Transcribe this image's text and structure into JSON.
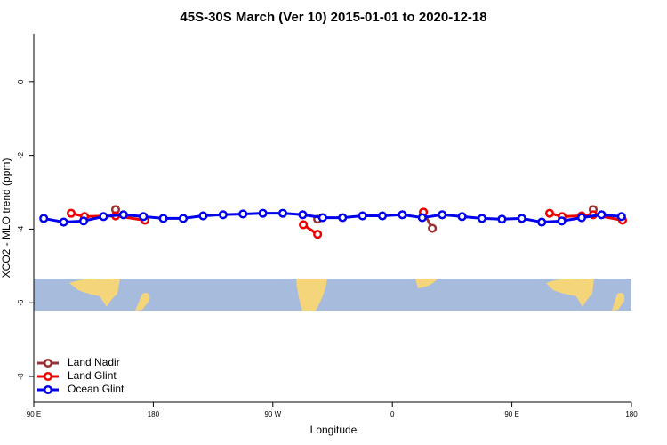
{
  "chart_data": {
    "type": "line",
    "title": "45S-30S March (Ver 10)   2015-01-01 to 2020-12-18",
    "x_label": "Longitude",
    "y_label": "XCO2 - MLO trend (ppm)",
    "xlim": [
      90,
      540
    ],
    "xticks": [
      {
        "value": 90,
        "label": "90 E"
      },
      {
        "value": 180,
        "label": "180"
      },
      {
        "value": 270,
        "label": "90 W"
      },
      {
        "value": 360,
        "label": "0"
      },
      {
        "value": 450,
        "label": "90 E"
      },
      {
        "value": 540,
        "label": "180"
      }
    ],
    "ylim": [
      -8.7,
      1.3
    ],
    "yticks": [
      0,
      -2,
      -4,
      -6,
      -8
    ],
    "legend": "bottom-left",
    "series": [
      {
        "name": "Land Nadir",
        "color": "#993333",
        "x": [
          151.6,
          null,
          303.7,
          null,
          383.4,
          390.1,
          null,
          511.2
        ],
        "values": [
          -3.47,
          null,
          -3.73,
          null,
          -3.54,
          -3.98,
          null,
          -3.47
        ]
      },
      {
        "name": "Land Glint",
        "color": "#ee0000",
        "x": [
          118.1,
          128.2,
          151.6,
          173.7,
          null,
          293.0,
          303.7,
          null,
          383.4,
          null,
          478.4,
          487.8,
          502.5,
          511.2,
          533.3
        ],
        "values": [
          -3.57,
          -3.66,
          -3.64,
          -3.76,
          null,
          -3.88,
          -4.14,
          null,
          -3.54,
          null,
          -3.57,
          -3.66,
          -3.64,
          -3.61,
          -3.76
        ]
      },
      {
        "name": "Ocean Glint",
        "color": "#0000ee",
        "x": [
          97.5,
          112.5,
          127.5,
          142.5,
          157.5,
          172.5,
          187.5,
          202.5,
          217.5,
          232.5,
          247.5,
          262.5,
          277.5,
          292.5,
          307.5,
          322.5,
          337.5,
          352.5,
          367.5,
          382.5,
          397.5,
          412.5,
          427.5,
          442.5,
          457.5,
          472.5,
          487.5,
          502.5,
          517.5,
          532.5
        ],
        "values": [
          -3.71,
          -3.81,
          -3.78,
          -3.66,
          -3.61,
          -3.66,
          -3.71,
          -3.71,
          -3.64,
          -3.61,
          -3.59,
          -3.57,
          -3.57,
          -3.61,
          -3.69,
          -3.69,
          -3.64,
          -3.64,
          -3.61,
          -3.69,
          -3.61,
          -3.66,
          -3.71,
          -3.73,
          -3.71,
          -3.81,
          -3.78,
          -3.69,
          -3.61,
          -3.66
        ]
      }
    ]
  }
}
